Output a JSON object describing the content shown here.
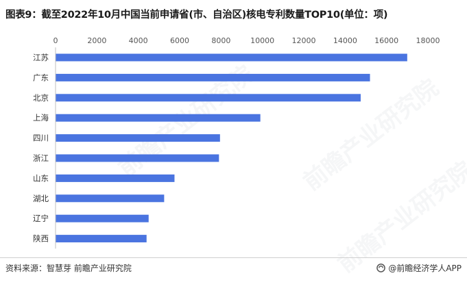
{
  "title": "图表9：截至2022年10月中国当前申请省(市、自治区)核电专利数量TOP10(单位：项)",
  "footer": {
    "source": "资料来源：智慧芽 前瞻产业研究院",
    "brand": "@前瞻经济学人APP"
  },
  "watermark": {
    "text": "前瞻产业研究院"
  },
  "chart_data": {
    "type": "bar",
    "orientation": "horizontal",
    "title": "图表9：截至2022年10月中国当前申请省(市、自治区)核电专利数量TOP10(单位：项)",
    "categories": [
      "江苏",
      "广东",
      "北京",
      "上海",
      "四川",
      "浙江",
      "山东",
      "湖北",
      "辽宁",
      "陕西"
    ],
    "values": [
      17000,
      15200,
      14750,
      9900,
      7950,
      7900,
      5750,
      5250,
      4500,
      4400
    ],
    "xlim": [
      0,
      18000
    ],
    "xticks": [
      0,
      2000,
      4000,
      6000,
      8000,
      10000,
      12000,
      14000,
      16000,
      18000
    ],
    "xaxis_position": "top",
    "grid": false,
    "legend": "none",
    "bar_color": "#4a74e0"
  }
}
